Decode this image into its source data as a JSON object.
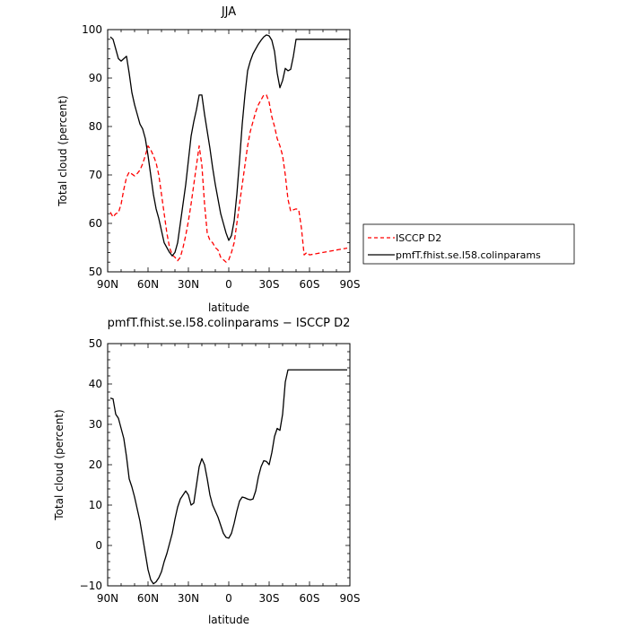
{
  "chart_data": [
    {
      "type": "line",
      "title": "JJA",
      "xlabel": "latitude",
      "ylabel": "Total cloud (percent)",
      "xlim": [
        -90,
        90
      ],
      "ylim": [
        50,
        100
      ],
      "x_ticks": [
        -90,
        -60,
        -30,
        0,
        30,
        60,
        90
      ],
      "x_tick_labels": [
        "90N",
        "60N",
        "30N",
        "0",
        "30S",
        "60S",
        "90S"
      ],
      "y_ticks": [
        50,
        60,
        70,
        80,
        90,
        100
      ],
      "y_tick_labels": [
        "50",
        "60",
        "70",
        "80",
        "90",
        "100"
      ],
      "grid": false,
      "legend_position": "right",
      "series": [
        {
          "name": "ISCCP D2",
          "color": "#ff0000",
          "dash": "dashed",
          "x": [
            -88,
            -86,
            -84,
            -82,
            -80,
            -78,
            -76,
            -74,
            -72,
            -70,
            -68,
            -66,
            -64,
            -62,
            -60,
            -58,
            -56,
            -54,
            -52,
            -50,
            -48,
            -46,
            -44,
            -42,
            -40,
            -38,
            -36,
            -34,
            -32,
            -30,
            -28,
            -26,
            -24,
            -22,
            -20,
            -18,
            -16,
            -14,
            -12,
            -10,
            -8,
            -6,
            -4,
            -2,
            0,
            2,
            4,
            6,
            8,
            10,
            12,
            14,
            16,
            18,
            20,
            22,
            24,
            26,
            28,
            30,
            32,
            34,
            36,
            38,
            40,
            42,
            44,
            46,
            48,
            50,
            52,
            54,
            56,
            58,
            60,
            62,
            64,
            66,
            68,
            70,
            72,
            74,
            76,
            78,
            80,
            82,
            84,
            86,
            88
          ],
          "y": [
            62.3,
            61.3,
            62.0,
            62.2,
            64.0,
            67.0,
            69.5,
            70.6,
            70.2,
            69.8,
            70.3,
            71.0,
            72.3,
            74.0,
            76.0,
            75.2,
            74.0,
            72.5,
            70.0,
            66.0,
            62.0,
            58.0,
            55.0,
            53.5,
            53.0,
            52.3,
            53.0,
            55.0,
            57.5,
            60.5,
            64.0,
            68.0,
            72.0,
            76.0,
            72.0,
            64.0,
            58.0,
            56.5,
            56.0,
            55.0,
            54.5,
            53.0,
            52.5,
            52.0,
            52.5,
            54.0,
            56.0,
            60.0,
            64.0,
            68.0,
            72.0,
            76.0,
            79.0,
            81.0,
            83.0,
            84.5,
            85.5,
            86.5,
            86.5,
            85.0,
            82.0,
            80.0,
            77.5,
            76.0,
            74.0,
            70.0,
            65.0,
            62.5,
            62.8,
            63.0,
            62.8,
            59.0,
            53.5,
            54.0,
            53.5,
            53.6,
            53.7,
            53.8,
            53.9,
            54.0,
            54.1,
            54.2,
            54.3,
            54.4,
            54.5,
            54.6,
            54.7,
            54.8,
            54.9
          ]
        },
        {
          "name": "pmfT.fhist.se.l58.colinparams",
          "color": "#000000",
          "dash": "solid",
          "x": [
            -88,
            -86,
            -84,
            -82,
            -80,
            -78,
            -76,
            -74,
            -72,
            -70,
            -68,
            -66,
            -64,
            -62,
            -60,
            -58,
            -56,
            -54,
            -52,
            -50,
            -48,
            -46,
            -44,
            -42,
            -40,
            -38,
            -36,
            -34,
            -32,
            -30,
            -28,
            -26,
            -24,
            -22,
            -20,
            -18,
            -16,
            -14,
            -12,
            -10,
            -8,
            -6,
            -4,
            -2,
            0,
            2,
            4,
            6,
            8,
            10,
            12,
            14,
            16,
            18,
            20,
            22,
            24,
            26,
            28,
            30,
            32,
            34,
            36,
            38,
            40,
            42,
            44,
            46,
            48,
            50,
            52,
            54,
            56,
            58,
            60,
            62,
            64,
            66,
            68,
            70,
            72,
            74,
            76,
            78,
            80,
            82,
            84,
            86,
            88
          ],
          "y": [
            98.5,
            98.0,
            96.0,
            94.0,
            93.5,
            94.0,
            94.5,
            91.0,
            87.0,
            84.5,
            82.5,
            80.5,
            79.5,
            77.5,
            74.0,
            70.0,
            66.0,
            63.0,
            61.0,
            58.5,
            56.0,
            55.0,
            54.0,
            53.3,
            54.0,
            56.0,
            60.0,
            64.0,
            68.0,
            73.0,
            78.0,
            81.0,
            83.5,
            86.5,
            86.5,
            82.5,
            79.0,
            75.5,
            71.5,
            68.0,
            65.0,
            62.0,
            60.0,
            58.0,
            56.5,
            57.5,
            60.5,
            66.0,
            73.0,
            80.5,
            86.5,
            91.5,
            93.5,
            95.0,
            96.0,
            97.0,
            97.8,
            98.5,
            98.9,
            98.7,
            97.8,
            95.5,
            91.0,
            88.0,
            89.5,
            92.0,
            91.5,
            91.8,
            94.5,
            98.0,
            98.0,
            98.0,
            98.0,
            98.0,
            98.0,
            98.0,
            98.0,
            98.0,
            98.0,
            98.0,
            98.0,
            98.0,
            98.0,
            98.0,
            98.0,
            98.0,
            98.0,
            98.0,
            98.0
          ]
        }
      ]
    },
    {
      "type": "line",
      "title": "pmfT.fhist.se.l58.colinparams − ISCCP D2",
      "xlabel": "latitude",
      "ylabel": "Total cloud (percent)",
      "xlim": [
        -90,
        90
      ],
      "ylim": [
        -10,
        50
      ],
      "x_ticks": [
        -90,
        -60,
        -30,
        0,
        30,
        60,
        90
      ],
      "x_tick_labels": [
        "90N",
        "60N",
        "30N",
        "0",
        "30S",
        "60S",
        "90S"
      ],
      "y_ticks": [
        -10,
        0,
        10,
        20,
        30,
        40,
        50
      ],
      "y_tick_labels": [
        "−10",
        "0",
        "10",
        "20",
        "30",
        "40",
        "50"
      ],
      "grid": false,
      "series": [
        {
          "color": "#000000",
          "dash": "solid",
          "x": [
            -88,
            -86,
            -84,
            -82,
            -80,
            -78,
            -76,
            -74,
            -72,
            -70,
            -68,
            -66,
            -64,
            -62,
            -60,
            -58,
            -56,
            -54,
            -52,
            -50,
            -48,
            -46,
            -44,
            -42,
            -40,
            -38,
            -36,
            -34,
            -32,
            -30,
            -28,
            -26,
            -24,
            -22,
            -20,
            -18,
            -16,
            -14,
            -12,
            -10,
            -8,
            -6,
            -4,
            -2,
            0,
            2,
            4,
            6,
            8,
            10,
            12,
            14,
            16,
            18,
            20,
            22,
            24,
            26,
            28,
            30,
            32,
            34,
            36,
            38,
            40,
            42,
            44,
            46,
            48,
            50,
            52,
            54,
            56,
            58,
            60,
            62,
            64,
            66,
            68,
            70,
            72,
            74,
            76,
            78,
            80,
            82,
            84,
            86,
            88
          ],
          "y": [
            36.5,
            36.3,
            32.5,
            31.5,
            29.0,
            26.5,
            22.0,
            16.5,
            14.5,
            12.0,
            9.0,
            6.0,
            2.0,
            -2.0,
            -6.0,
            -8.5,
            -9.5,
            -9.0,
            -8.0,
            -6.5,
            -4.0,
            -2.0,
            0.5,
            3.0,
            6.5,
            9.5,
            11.5,
            12.5,
            13.5,
            12.5,
            10.0,
            10.5,
            15.0,
            19.5,
            21.5,
            20.0,
            16.5,
            12.5,
            10.0,
            8.5,
            7.0,
            5.0,
            3.0,
            2.0,
            1.8,
            3.0,
            5.5,
            8.5,
            11.0,
            12.0,
            11.8,
            11.5,
            11.3,
            11.5,
            13.5,
            17.0,
            19.5,
            21.0,
            20.8,
            20.0,
            23.0,
            27.0,
            29.0,
            28.5,
            32.5,
            40.5,
            43.5,
            43.5,
            43.5,
            43.5,
            43.5,
            43.5,
            43.5,
            43.5,
            43.5,
            43.5,
            43.5,
            43.5,
            43.5,
            43.5,
            43.5,
            43.5,
            43.5,
            43.5,
            43.5,
            43.5,
            43.5,
            43.5,
            43.5
          ]
        }
      ]
    }
  ]
}
